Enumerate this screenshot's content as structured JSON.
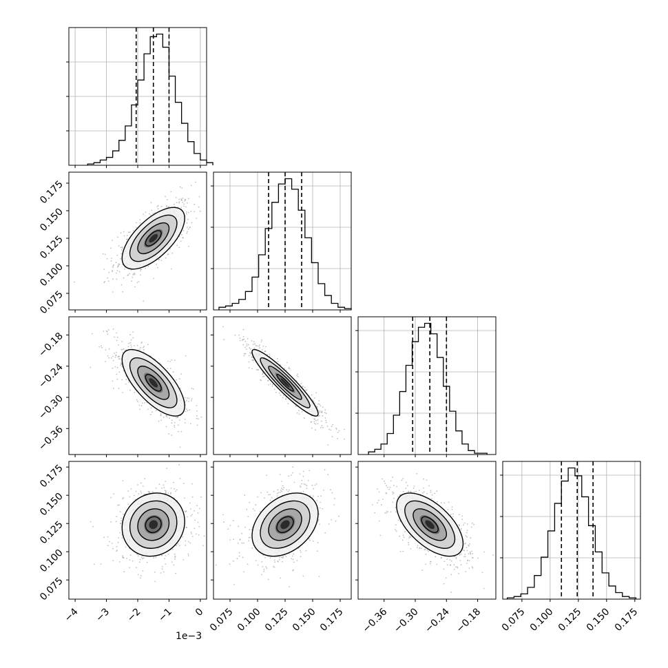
{
  "chart_data": {
    "type": "corner",
    "title": "",
    "grid": true,
    "colors": {
      "ink": "#000000",
      "grid": "#b0b0b0",
      "background": "#ffffff"
    },
    "parameters": [
      {
        "index": 0,
        "range": [
          -4.2,
          0.2
        ],
        "ticks": [
          -4,
          -3,
          -2,
          -1,
          0
        ],
        "tick_labels": [
          "−4",
          "−3",
          "−2",
          "−1",
          "0"
        ],
        "offset_label": "1e−3",
        "quantiles": [
          -2.05,
          -1.5,
          -1.0
        ],
        "hist_bin_start": -3.6,
        "hist_bin_width": 0.2,
        "hist_counts": [
          1,
          2,
          4,
          6,
          11,
          19,
          30,
          46,
          65,
          85,
          98,
          100,
          90,
          68,
          48,
          32,
          18,
          9,
          4,
          2
        ],
        "hist_ytick_fractions": [
          0.25,
          0.5,
          0.75
        ]
      },
      {
        "index": 1,
        "range": [
          0.06,
          0.185
        ],
        "ticks": [
          0.075,
          0.1,
          0.125,
          0.15,
          0.175
        ],
        "tick_labels": [
          "0.075",
          "0.100",
          "0.125",
          "0.150",
          "0.175"
        ],
        "offset_label": "",
        "quantiles": [
          0.11,
          0.125,
          0.14
        ],
        "hist_bin_start": 0.065,
        "hist_bin_width": 0.006,
        "hist_counts": [
          2,
          3,
          5,
          8,
          14,
          25,
          42,
          62,
          82,
          96,
          100,
          92,
          76,
          55,
          36,
          20,
          11,
          5,
          2,
          1
        ],
        "hist_ytick_fractions": [
          0.3,
          0.6,
          0.9
        ]
      },
      {
        "index": 2,
        "range": [
          -0.41,
          -0.145
        ],
        "ticks": [
          -0.36,
          -0.3,
          -0.24,
          -0.18
        ],
        "tick_labels": [
          "−0.36",
          "−0.30",
          "−0.24",
          "−0.18"
        ],
        "offset_label": "",
        "quantiles": [
          -0.305,
          -0.272,
          -0.24
        ],
        "hist_bin_start": -0.39,
        "hist_bin_width": 0.012,
        "hist_counts": [
          2,
          4,
          8,
          16,
          30,
          48,
          68,
          86,
          97,
          100,
          92,
          74,
          52,
          33,
          18,
          8,
          3,
          1,
          1
        ],
        "hist_ytick_fractions": [
          0.3,
          0.6,
          0.9
        ]
      },
      {
        "index": 3,
        "range": [
          0.058,
          0.18
        ],
        "ticks": [
          0.075,
          0.1,
          0.125,
          0.15,
          0.175
        ],
        "tick_labels": [
          "0.075",
          "0.100",
          "0.125",
          "0.150",
          "0.175"
        ],
        "offset_label": "",
        "quantiles": [
          0.11,
          0.124,
          0.138
        ],
        "hist_bin_start": 0.062,
        "hist_bin_width": 0.006,
        "hist_counts": [
          1,
          2,
          4,
          9,
          18,
          32,
          52,
          73,
          90,
          100,
          94,
          78,
          56,
          36,
          20,
          10,
          5,
          2,
          1
        ],
        "hist_ytick_fractions": [
          0.3,
          0.6,
          0.9
        ]
      }
    ],
    "pairs": [
      {
        "row": 1,
        "col": 0,
        "mean": [
          -1.5,
          0.125
        ],
        "sd": [
          0.5,
          0.014
        ],
        "rho": 0.65
      },
      {
        "row": 2,
        "col": 0,
        "mean": [
          -1.5,
          -0.272
        ],
        "sd": [
          0.5,
          0.032
        ],
        "rho": -0.7
      },
      {
        "row": 2,
        "col": 1,
        "mean": [
          0.125,
          -0.272
        ],
        "sd": [
          0.015,
          0.032
        ],
        "rho": -0.93
      },
      {
        "row": 3,
        "col": 0,
        "mean": [
          -1.5,
          0.124
        ],
        "sd": [
          0.5,
          0.014
        ],
        "rho": 0.1
      },
      {
        "row": 3,
        "col": 1,
        "mean": [
          0.125,
          0.124
        ],
        "sd": [
          0.015,
          0.014
        ],
        "rho": 0.35
      },
      {
        "row": 3,
        "col": 2,
        "mean": [
          -0.272,
          0.124
        ],
        "sd": [
          0.032,
          0.014
        ],
        "rho": -0.6
      }
    ],
    "contour_sigma_levels": [
      0.5,
      1.0,
      1.5,
      2.0
    ]
  }
}
